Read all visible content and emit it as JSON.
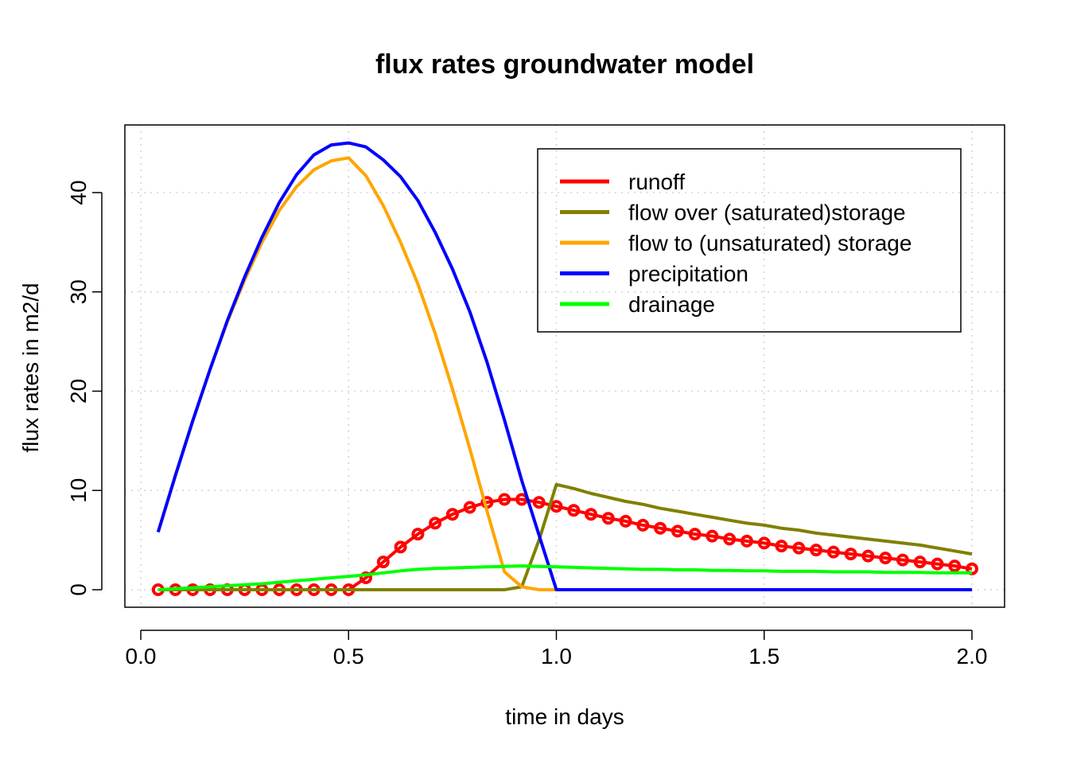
{
  "chart_data": {
    "type": "line",
    "title": "flux rates groundwater model",
    "xlabel": "time in days",
    "ylabel": "flux rates in m2/d",
    "xlim": [
      0.0,
      2.0
    ],
    "ylim": [
      0,
      45
    ],
    "x_ticks": [
      "0.0",
      "0.5",
      "1.0",
      "1.5",
      "2.0"
    ],
    "y_ticks": [
      "0",
      "10",
      "20",
      "30",
      "40"
    ],
    "grid": true,
    "legend_position": "top-right",
    "x": [
      0.0417,
      0.0833,
      0.125,
      0.1667,
      0.2083,
      0.25,
      0.2917,
      0.3333,
      0.375,
      0.4167,
      0.4583,
      0.5,
      0.5417,
      0.5833,
      0.625,
      0.6667,
      0.7083,
      0.75,
      0.7917,
      0.8333,
      0.875,
      0.9167,
      0.9583,
      1.0,
      1.0417,
      1.0833,
      1.125,
      1.1667,
      1.2083,
      1.25,
      1.2917,
      1.3333,
      1.375,
      1.4167,
      1.4583,
      1.5,
      1.5417,
      1.5833,
      1.625,
      1.6667,
      1.7083,
      1.75,
      1.7917,
      1.8333,
      1.875,
      1.9167,
      1.9583,
      2.0
    ],
    "series": [
      {
        "name": "runoff",
        "color": "#ff0000",
        "markers": true,
        "values": [
          0,
          0,
          0,
          0,
          0,
          0,
          0,
          0,
          0,
          0,
          0,
          0,
          1.2,
          2.8,
          4.3,
          5.6,
          6.7,
          7.6,
          8.3,
          8.8,
          9.1,
          9.1,
          8.8,
          8.4,
          8.0,
          7.6,
          7.2,
          6.9,
          6.5,
          6.2,
          5.9,
          5.6,
          5.4,
          5.1,
          4.9,
          4.7,
          4.4,
          4.2,
          4.0,
          3.8,
          3.6,
          3.4,
          3.2,
          3.0,
          2.8,
          2.6,
          2.4,
          2.1
        ]
      },
      {
        "name": "flow over (saturated)storage",
        "color": "#808000",
        "markers": false,
        "values": [
          0,
          0,
          0,
          0,
          0,
          0,
          0,
          0,
          0,
          0,
          0,
          0,
          0,
          0,
          0,
          0,
          0,
          0,
          0,
          0,
          0,
          0.3,
          5.0,
          10.6,
          10.2,
          9.7,
          9.3,
          8.9,
          8.6,
          8.2,
          7.9,
          7.6,
          7.3,
          7.0,
          6.7,
          6.5,
          6.2,
          6.0,
          5.7,
          5.5,
          5.3,
          5.1,
          4.9,
          4.7,
          4.5,
          4.2,
          3.9,
          3.6
        ]
      },
      {
        "name": "flow to (unsaturated) storage",
        "color": "#ffa500",
        "markers": false,
        "values": [
          5.8,
          11.5,
          17.0,
          22.2,
          27.0,
          31.2,
          35.0,
          38.2,
          40.6,
          42.3,
          43.2,
          43.5,
          41.7,
          38.7,
          35.0,
          30.8,
          25.8,
          20.2,
          14.2,
          7.9,
          1.8,
          0.3,
          0,
          0,
          0,
          0,
          0,
          0,
          0,
          0,
          0,
          0,
          0,
          0,
          0,
          0,
          0,
          0,
          0,
          0,
          0,
          0,
          0,
          0,
          0,
          0,
          0,
          0
        ]
      },
      {
        "name": "precipitation",
        "color": "#0000ff",
        "markers": false,
        "values": [
          5.8,
          11.5,
          17.0,
          22.2,
          27.1,
          31.5,
          35.5,
          39.0,
          41.8,
          43.8,
          44.8,
          45.0,
          44.6,
          43.3,
          41.6,
          39.2,
          36.0,
          32.3,
          28.0,
          22.9,
          17.1,
          11.0,
          5.5,
          0,
          0,
          0,
          0,
          0,
          0,
          0,
          0,
          0,
          0,
          0,
          0,
          0,
          0,
          0,
          0,
          0,
          0,
          0,
          0,
          0,
          0,
          0,
          0,
          0
        ]
      },
      {
        "name": "drainage",
        "color": "#00ff00",
        "markers": false,
        "values": [
          0,
          0.1,
          0.2,
          0.3,
          0.4,
          0.5,
          0.6,
          0.75,
          0.9,
          1.05,
          1.2,
          1.35,
          1.5,
          1.7,
          1.9,
          2.05,
          2.15,
          2.2,
          2.25,
          2.3,
          2.35,
          2.4,
          2.35,
          2.3,
          2.25,
          2.2,
          2.15,
          2.1,
          2.05,
          2.05,
          2.0,
          2.0,
          1.95,
          1.95,
          1.9,
          1.9,
          1.85,
          1.85,
          1.85,
          1.8,
          1.8,
          1.8,
          1.75,
          1.75,
          1.75,
          1.7,
          1.7,
          1.7
        ]
      }
    ]
  }
}
